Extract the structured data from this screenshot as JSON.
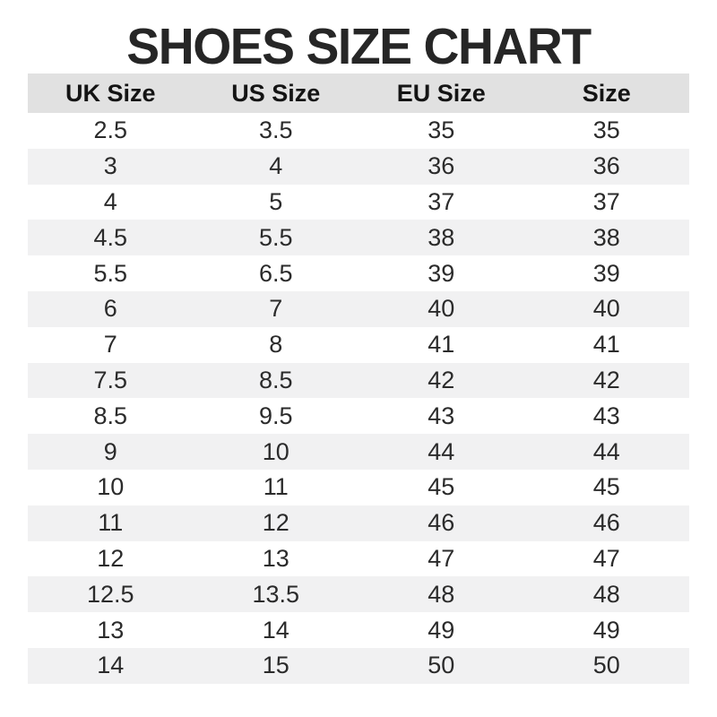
{
  "chart_data": {
    "type": "table",
    "title": "SHOES SIZE CHART",
    "columns": [
      "UK Size",
      "US Size",
      "EU Size",
      "Size"
    ],
    "rows": [
      [
        "2.5",
        "3.5",
        "35",
        "35"
      ],
      [
        "3",
        "4",
        "36",
        "36"
      ],
      [
        "4",
        "5",
        "37",
        "37"
      ],
      [
        "4.5",
        "5.5",
        "38",
        "38"
      ],
      [
        "5.5",
        "6.5",
        "39",
        "39"
      ],
      [
        "6",
        "7",
        "40",
        "40"
      ],
      [
        "7",
        "8",
        "41",
        "41"
      ],
      [
        "7.5",
        "8.5",
        "42",
        "42"
      ],
      [
        "8.5",
        "9.5",
        "43",
        "43"
      ],
      [
        "9",
        "10",
        "44",
        "44"
      ],
      [
        "10",
        "11",
        "45",
        "45"
      ],
      [
        "11",
        "12",
        "46",
        "46"
      ],
      [
        "12",
        "13",
        "47",
        "47"
      ],
      [
        "12.5",
        "13.5",
        "48",
        "48"
      ],
      [
        "13",
        "14",
        "49",
        "49"
      ],
      [
        "14",
        "15",
        "50",
        "50"
      ]
    ],
    "layout": {
      "striped": true,
      "stripe_pattern": "odd-white-even-gray"
    }
  },
  "colors": {
    "background": "#ffffff",
    "title_text": "#262626",
    "header_bg": "#e1e1e1",
    "row_alt_bg": "#f1f1f2",
    "cell_text": "#2b2b2b"
  }
}
